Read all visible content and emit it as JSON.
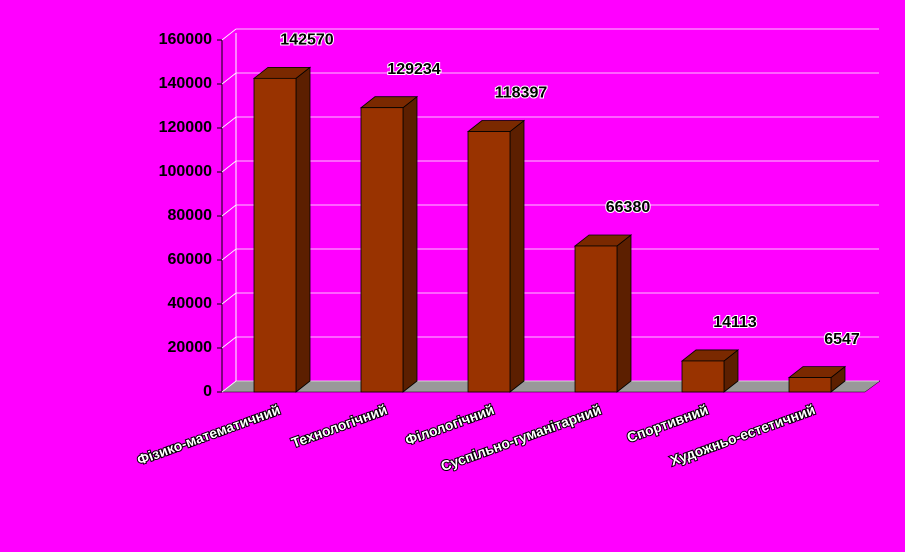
{
  "chart_data": {
    "type": "bar",
    "categories": [
      "Фізико-математичний",
      "Технологічний",
      "Філологічний",
      "Суспільно-гуманітарний",
      "Спортивний",
      "Художньо-естетичний"
    ],
    "values": [
      142570,
      129234,
      118397,
      66380,
      14113,
      6547
    ],
    "color": "#993300",
    "ylim": [
      0,
      160000
    ],
    "yticks": [
      0,
      20000,
      40000,
      60000,
      80000,
      100000,
      120000,
      140000,
      160000
    ],
    "grid": true
  }
}
